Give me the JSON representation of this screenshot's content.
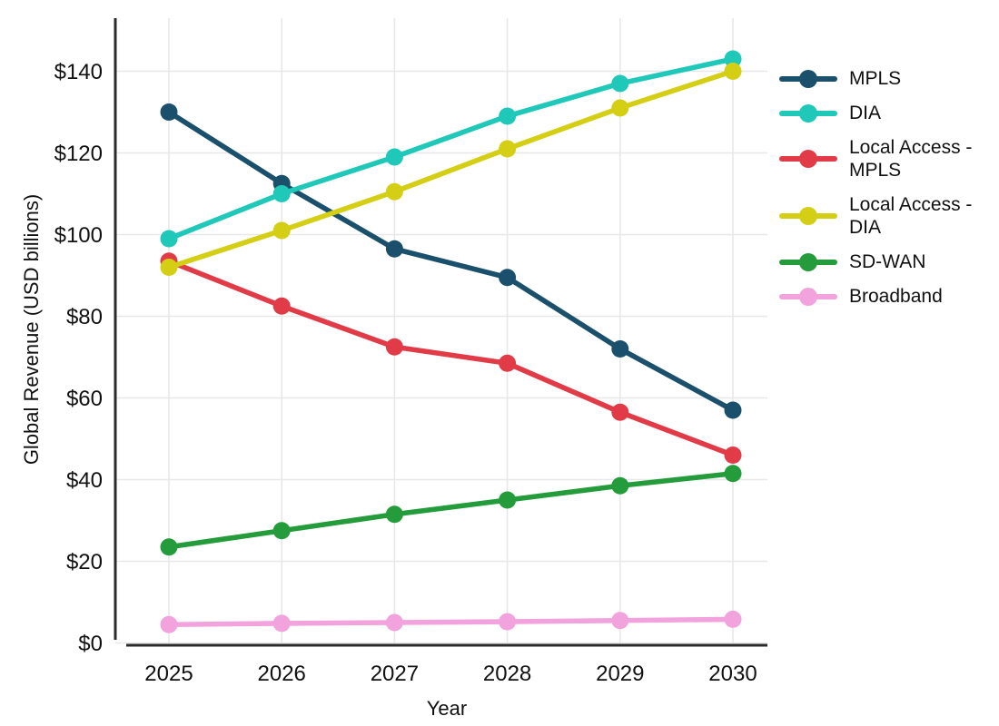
{
  "chart_data": {
    "type": "line",
    "title": "",
    "xlabel": "Year",
    "ylabel": "Global Revenue (USD billions)",
    "x": [
      2025,
      2026,
      2027,
      2028,
      2029,
      2030
    ],
    "y_ticks": [
      0,
      20,
      40,
      60,
      80,
      100,
      120,
      140
    ],
    "y_tick_labels": [
      "$0",
      "$20",
      "$40",
      "$60",
      "$80",
      "$100",
      "$120",
      "$140"
    ],
    "ylim": [
      0,
      153
    ],
    "grid": true,
    "legend_position": "right",
    "series": [
      {
        "name": "MPLS",
        "color": "#1a506b",
        "values": [
          130,
          112.5,
          96.5,
          89.5,
          72,
          57
        ]
      },
      {
        "name": "DIA",
        "color": "#1fc8b9",
        "values": [
          99,
          110,
          119,
          129,
          137,
          143
        ]
      },
      {
        "name": "Local Access - MPLS",
        "color": "#e23b48",
        "values": [
          93.5,
          82.5,
          72.5,
          68.5,
          56.5,
          46
        ]
      },
      {
        "name": "Local Access - DIA",
        "color": "#d4ce14",
        "values": [
          92,
          101,
          110.5,
          121,
          131,
          140
        ]
      },
      {
        "name": "SD-WAN",
        "color": "#259c3b",
        "values": [
          23.5,
          27.5,
          31.5,
          35,
          38.5,
          41.5
        ]
      },
      {
        "name": "Broadband",
        "color": "#f2a2dd",
        "values": [
          4.5,
          4.8,
          5,
          5.2,
          5.5,
          5.8
        ]
      }
    ],
    "colors": {
      "grid": "#e8e8e8",
      "axis": "#2b2b2b",
      "text": "#111111",
      "background": "#ffffff"
    }
  }
}
